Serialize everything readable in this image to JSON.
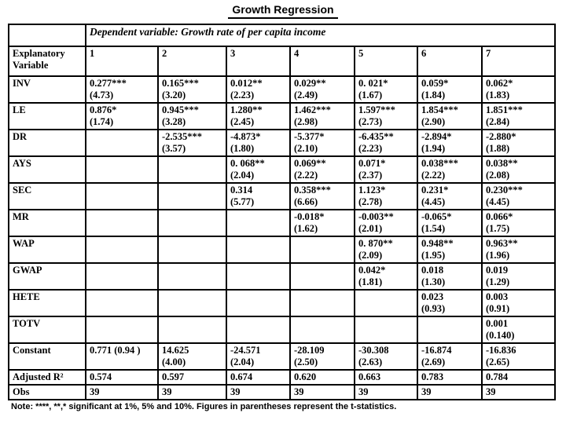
{
  "title": "Growth Regression",
  "colors": {
    "text": "#000000",
    "background": "#ffffff",
    "border": "#000000"
  },
  "table": {
    "dependent_variable_header": "Dependent variable: Growth rate of per capita income",
    "row_header": "Explanatory Variable",
    "column_headers": [
      "1",
      "2",
      "3",
      "4",
      "5",
      "6",
      "7"
    ],
    "rows": [
      {
        "label": "INV",
        "cells": [
          [
            "0.277***",
            "(4.73)"
          ],
          [
            "0.165***",
            "(3.20)"
          ],
          [
            "0.012**",
            "(2.23)"
          ],
          [
            "0.029**",
            "(2.49)"
          ],
          [
            "0. 021*",
            "(1.67)"
          ],
          [
            "0.059*",
            "(1.84)"
          ],
          [
            "0.062*",
            "(1.83)"
          ]
        ]
      },
      {
        "label": "LE",
        "cells": [
          [
            "0.876*",
            "(1.74)"
          ],
          [
            "0.945***",
            "(3.28)"
          ],
          [
            "1.280**",
            "(2.45)"
          ],
          [
            "1.462***",
            "(2.98)"
          ],
          [
            "1.597***",
            "(2.73)"
          ],
          [
            "1.854***",
            "(2.90)"
          ],
          [
            "1.851***",
            "(2.84)"
          ]
        ]
      },
      {
        "label": "DR",
        "cells": [
          [],
          [
            "-2.535***",
            "(3.57)"
          ],
          [
            "-4.873*",
            "(1.80)"
          ],
          [
            "-5.377*",
            "(2.10)"
          ],
          [
            "-6.435**",
            "(2.23)"
          ],
          [
            "-2.894*",
            "(1.94)"
          ],
          [
            "-2.880*",
            "(1.88)"
          ]
        ]
      },
      {
        "label": "AYS",
        "cells": [
          [],
          [],
          [
            "0. 068**",
            "(2.04)"
          ],
          [
            "0.069**",
            "(2.22)"
          ],
          [
            "0.071*",
            "(2.37)"
          ],
          [
            "0.038***",
            "(2.22)"
          ],
          [
            "0.038**",
            "(2.08)"
          ]
        ]
      },
      {
        "label": "SEC",
        "cells": [
          [],
          [],
          [
            "0.314",
            "(5.77)"
          ],
          [
            "0.358***",
            "(6.66)"
          ],
          [
            "1.123*",
            "(2.78)"
          ],
          [
            "0.231*",
            "(4.45)"
          ],
          [
            "0.230***",
            "(4.45)"
          ]
        ]
      },
      {
        "label": "MR",
        "cells": [
          [],
          [],
          [],
          [
            "-0.018*",
            "(1.62)"
          ],
          [
            "-0.003**",
            "(2.01)"
          ],
          [
            "-0.065*",
            "(1.54)"
          ],
          [
            "0.066*",
            "(1.75)"
          ]
        ]
      },
      {
        "label": "WAP",
        "cells": [
          [],
          [],
          [],
          [],
          [
            "0. 870**",
            "(2.09)"
          ],
          [
            "0.948**",
            "(1.95)"
          ],
          [
            "0.963**",
            "(1.96)"
          ]
        ]
      },
      {
        "label": "GWAP",
        "cells": [
          [],
          [],
          [],
          [],
          [
            "0.042*",
            "(1.81)"
          ],
          [
            "0.018",
            "(1.30)"
          ],
          [
            "0.019",
            "(1.29)"
          ]
        ]
      },
      {
        "label": "HETE",
        "cells": [
          [],
          [],
          [],
          [],
          [],
          [
            "0.023",
            "(0.93)"
          ],
          [
            "0.003",
            "(0.91)"
          ]
        ]
      },
      {
        "label": "TOTV",
        "cells": [
          [],
          [],
          [],
          [],
          [],
          [],
          [
            "0.001",
            "(0.140)"
          ]
        ]
      },
      {
        "label": "Constant",
        "cells": [
          [
            "0.771 (0.94 )"
          ],
          [
            "14.625",
            "(4.00)"
          ],
          [
            "-24.571",
            "(2.04)"
          ],
          [
            "-28.109",
            "(2.50)"
          ],
          [
            "-30.308",
            "(2.63)"
          ],
          [
            "-16.874",
            "(2.69)"
          ],
          [
            "-16.836",
            "(2.65)"
          ]
        ]
      },
      {
        "label": "Adjusted R²",
        "cells": [
          [
            "0.574"
          ],
          [
            "0.597"
          ],
          [
            "0.674"
          ],
          [
            "0.620"
          ],
          [
            "0.663"
          ],
          [
            "0.783"
          ],
          [
            "0.784"
          ]
        ]
      },
      {
        "label": "Obs",
        "cells": [
          [
            "39"
          ],
          [
            "39"
          ],
          [
            "39"
          ],
          [
            "39"
          ],
          [
            "39"
          ],
          [
            "39"
          ],
          [
            "39"
          ]
        ]
      }
    ]
  },
  "note": "Note: ****, **,* significant at 1%, 5% and 10%. Figures in parentheses represent the t-statistics."
}
